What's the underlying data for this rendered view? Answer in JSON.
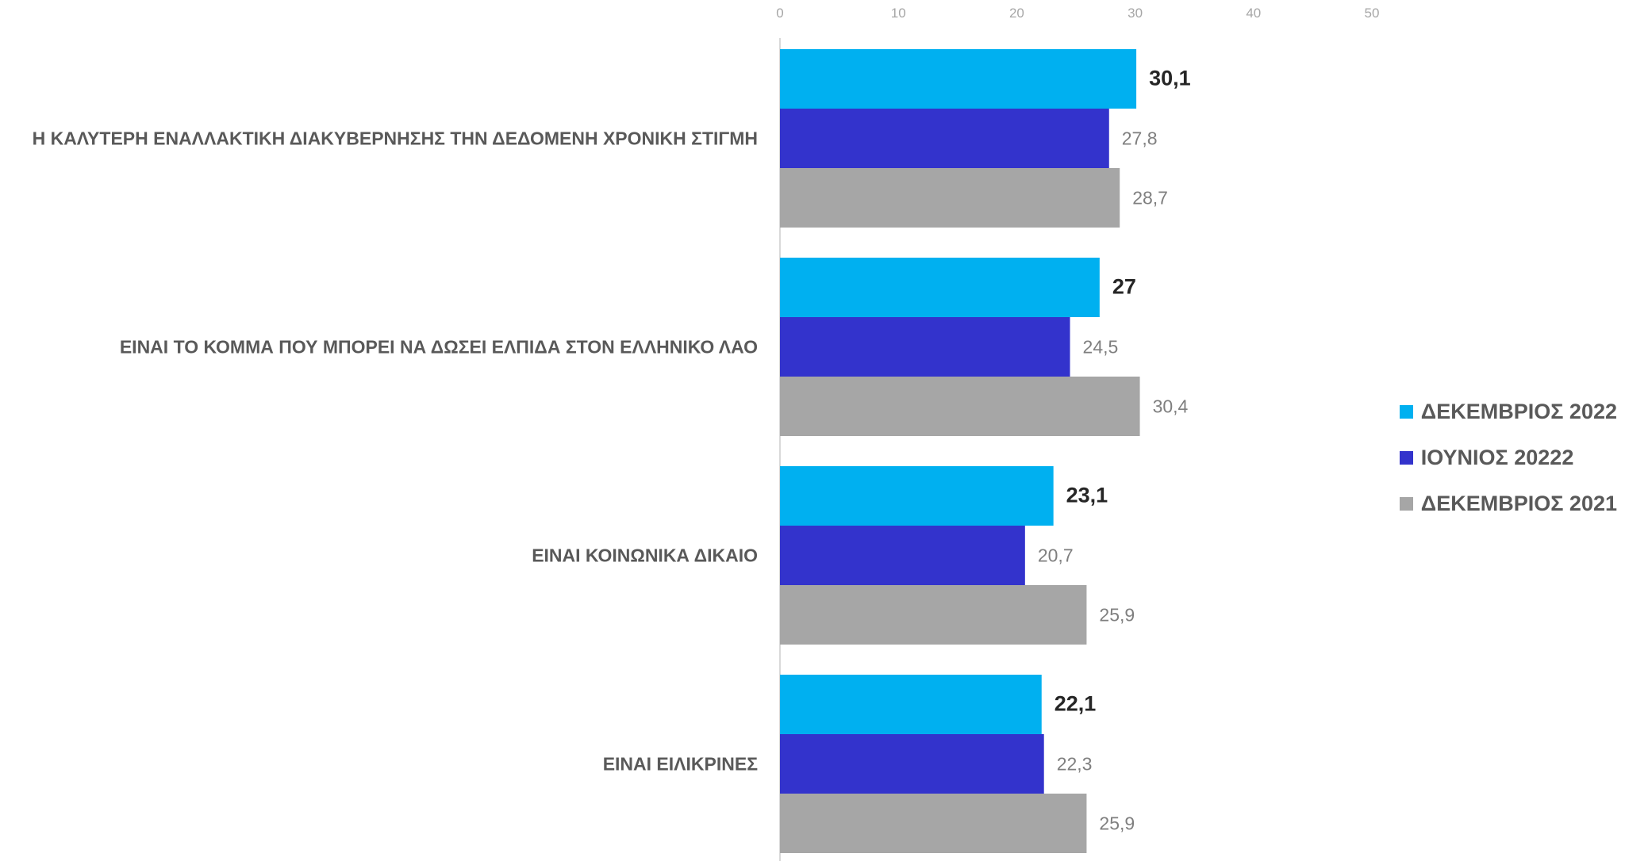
{
  "chart_data": {
    "type": "bar",
    "orientation": "horizontal",
    "categories": [
      "Η ΚΑΛΥΤΕΡΗ ΕΝΑΛΛΑΚΤΙΚΗ ΔΙΑΚΥΒΕΡΝΗΣΗΣ ΤΗΝ ΔΕΔΟΜΕΝΗ ΧΡΟΝΙΚΗ ΣΤΙΓΜΗ",
      "ΕΙΝΑΙ ΤΟ ΚΟΜΜΑ ΠΟΥ ΜΠΟΡΕΙ ΝΑ ΔΩΣΕΙ ΕΛΠΙΔΑ ΣΤΟΝ ΕΛΛΗΝΙΚΟ ΛΑΟ",
      "ΕΙΝΑΙ ΚΟΙΝΩΝΙΚΑ ΔΙΚΑΙΟ",
      "ΕΙΝΑΙ ΕΙΛΙΚΡΙΝΕΣ"
    ],
    "series": [
      {
        "name": "ΔΕΚΕΜΒΡΙΟΣ 2022",
        "color": "#00b0f0",
        "values": [
          30.1,
          27,
          23.1,
          22.1
        ],
        "labels": [
          "30,1",
          "27",
          "23,1",
          "22,1"
        ],
        "emphasis": true
      },
      {
        "name": "ΙΟΥΝΙΟΣ 20222",
        "color": "#3333cc",
        "values": [
          27.8,
          24.5,
          20.7,
          22.3
        ],
        "labels": [
          "27,8",
          "24,5",
          "20,7",
          "22,3"
        ]
      },
      {
        "name": "ΔΕΚΕΜΒΡΙΟΣ 2021",
        "color": "#a6a6a6",
        "values": [
          28.7,
          30.4,
          25.9,
          25.9
        ],
        "labels": [
          "28,7",
          "30,4",
          "25,9",
          "25,9"
        ]
      }
    ],
    "xlim": [
      0,
      50
    ],
    "xticks": [
      "0",
      "10",
      "20",
      "30",
      "40",
      "50"
    ],
    "axis_position": "top",
    "grid": false,
    "legend_position": "right"
  }
}
